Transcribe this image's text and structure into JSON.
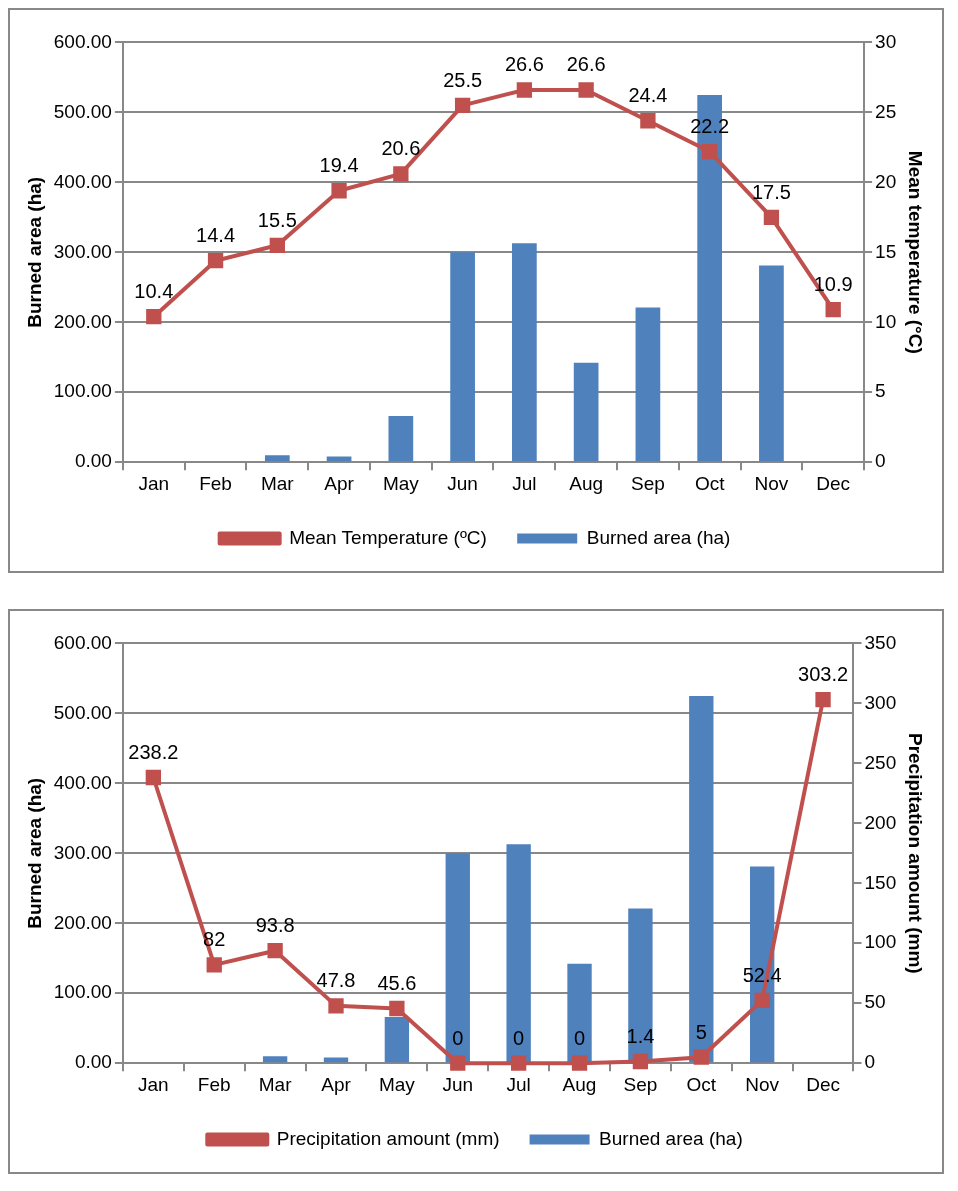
{
  "chart_data": [
    {
      "type": "bar",
      "categories": [
        "Jan",
        "Feb",
        "Mar",
        "Apr",
        "May",
        "Jun",
        "Jul",
        "Aug",
        "Sep",
        "Oct",
        "Nov",
        "Dec"
      ],
      "ylabel": "Burned area (ha)",
      "y2label": "Mean temperature (°C)",
      "series": [
        {
          "name": "Burned area (ha)",
          "color": "#4f81bd",
          "values": [
            0,
            0,
            10,
            8,
            66,
            300,
            313,
            142,
            221,
            525,
            281,
            0
          ]
        },
        {
          "name": "Mean Temperature (ºC)",
          "type": "line",
          "axis": "y2",
          "color": "#c0504d",
          "values": [
            10.4,
            14.4,
            15.5,
            19.4,
            20.6,
            25.5,
            26.6,
            26.6,
            24.4,
            22.2,
            17.5,
            10.9
          ],
          "value_labels": [
            "10.4",
            "14.4",
            "15.5",
            "19.4",
            "20.6",
            "25.5",
            "26.6",
            "26.6",
            "24.4",
            "22.2",
            "17.5",
            "10.9"
          ]
        }
      ],
      "ylim": [
        0,
        600
      ],
      "yticks": [
        {
          "value": 0,
          "label": "0.00"
        },
        {
          "value": 100,
          "label": "100.00"
        },
        {
          "value": 200,
          "label": "200.00"
        },
        {
          "value": 300,
          "label": "300.00"
        },
        {
          "value": 400,
          "label": "400.00"
        },
        {
          "value": 500,
          "label": "500.00"
        },
        {
          "value": 600,
          "label": "600.00"
        }
      ],
      "y2lim": [
        0,
        30
      ],
      "y2ticks": [
        0,
        5,
        10,
        15,
        20,
        25,
        30
      ],
      "grid": "y",
      "legend": "bottom",
      "marker": "square"
    },
    {
      "type": "bar",
      "categories": [
        "Jan",
        "Feb",
        "Mar",
        "Apr",
        "May",
        "Jun",
        "Jul",
        "Aug",
        "Sep",
        "Oct",
        "Nov",
        "Dec"
      ],
      "ylabel": "Burned area (ha)",
      "y2label": "Precipitation amount (mm)",
      "series": [
        {
          "name": "Burned area (ha)",
          "color": "#4f81bd",
          "values": [
            0,
            0,
            10,
            8,
            66,
            300,
            313,
            142,
            221,
            525,
            281,
            0
          ]
        },
        {
          "name": "Precipitation amount (mm)",
          "type": "line",
          "axis": "y2",
          "color": "#c0504d",
          "values": [
            238.2,
            82,
            93.8,
            47.8,
            45.6,
            0,
            0,
            0,
            1.4,
            5,
            52.4,
            303.2
          ],
          "value_labels": [
            "238.2",
            "82",
            "93.8",
            "47.8",
            "45.6",
            "0",
            "0",
            "0",
            "1.4",
            "5",
            "52.4",
            "303.2"
          ]
        }
      ],
      "ylim": [
        0,
        600
      ],
      "yticks": [
        {
          "value": 0,
          "label": "0.00"
        },
        {
          "value": 100,
          "label": "100.00"
        },
        {
          "value": 200,
          "label": "200.00"
        },
        {
          "value": 300,
          "label": "300.00"
        },
        {
          "value": 400,
          "label": "400.00"
        },
        {
          "value": 500,
          "label": "500.00"
        },
        {
          "value": 600,
          "label": "600.00"
        }
      ],
      "y2lim": [
        0,
        350
      ],
      "y2ticks": [
        0,
        50,
        100,
        150,
        200,
        250,
        300,
        350
      ],
      "grid": "y",
      "legend": "bottom",
      "marker": "square"
    }
  ]
}
